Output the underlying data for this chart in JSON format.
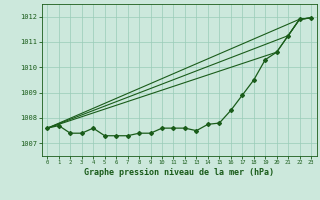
{
  "title": "Graphe pression niveau de la mer (hPa)",
  "background_color": "#cce8dc",
  "grid_color": "#99ccb8",
  "line_color": "#1a5c1a",
  "spine_color": "#1a5c1a",
  "xlim": [
    -0.5,
    23.5
  ],
  "ylim": [
    1006.5,
    1012.5
  ],
  "yticks": [
    1007,
    1008,
    1009,
    1010,
    1011,
    1012
  ],
  "xticks": [
    0,
    1,
    2,
    3,
    4,
    5,
    6,
    7,
    8,
    9,
    10,
    11,
    12,
    13,
    14,
    15,
    16,
    17,
    18,
    19,
    20,
    21,
    22,
    23
  ],
  "series1_x": [
    0,
    1,
    2,
    3,
    4,
    5,
    6,
    7,
    8,
    9,
    10,
    11,
    12,
    13,
    14,
    15,
    16,
    17,
    18,
    19,
    20,
    21,
    22,
    23
  ],
  "series1_y": [
    1007.6,
    1007.7,
    1007.4,
    1007.4,
    1007.6,
    1007.3,
    1007.3,
    1007.3,
    1007.4,
    1007.4,
    1007.6,
    1007.6,
    1007.6,
    1007.5,
    1007.75,
    1007.8,
    1008.3,
    1008.9,
    1009.5,
    1010.3,
    1010.6,
    1011.25,
    1011.9,
    1011.95
  ],
  "series2_x": [
    0,
    22,
    23
  ],
  "series2_y": [
    1007.6,
    1011.9,
    1011.95
  ],
  "series3_x": [
    0,
    21,
    22,
    23
  ],
  "series3_y": [
    1007.6,
    1011.25,
    1011.9,
    1011.95
  ],
  "series4_x": [
    0,
    20,
    21,
    22,
    23
  ],
  "series4_y": [
    1007.6,
    1010.6,
    1011.25,
    1011.9,
    1011.95
  ]
}
